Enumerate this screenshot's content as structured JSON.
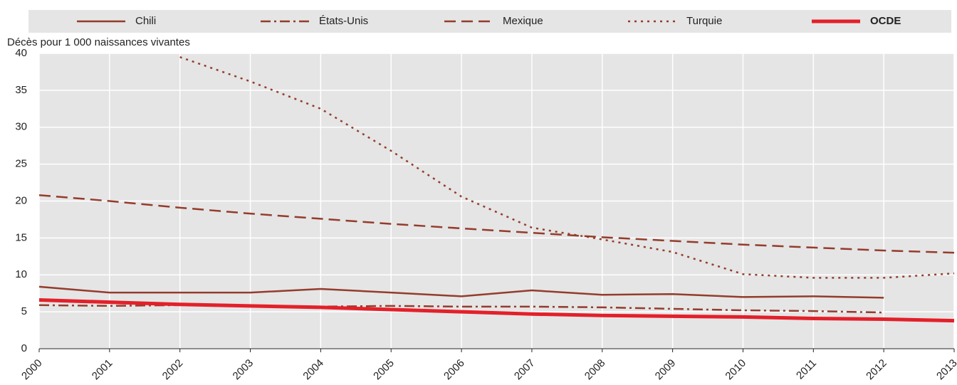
{
  "chart_data": {
    "type": "line",
    "y_axis_label": "Décès pour 1 000 naissances vivantes",
    "x": [
      2000,
      2001,
      2002,
      2003,
      2004,
      2005,
      2006,
      2007,
      2008,
      2009,
      2010,
      2011,
      2012,
      2013
    ],
    "xlim": [
      2000,
      2013
    ],
    "xticks": [
      2000,
      2001,
      2002,
      2003,
      2004,
      2005,
      2006,
      2007,
      2008,
      2009,
      2010,
      2011,
      2012,
      2013
    ],
    "ylim": [
      0,
      40
    ],
    "yticks": [
      0,
      5,
      10,
      15,
      20,
      25,
      30,
      35,
      40
    ],
    "grid": true,
    "legend": "top",
    "series": [
      {
        "name": "Chili",
        "color": "#943c2c",
        "dash": "solid",
        "width": 2.5,
        "values": [
          8.4,
          7.6,
          7.6,
          7.6,
          8.1,
          7.6,
          7.1,
          7.9,
          7.3,
          7.4,
          7.0,
          7.1,
          6.9,
          null
        ]
      },
      {
        "name": "États-Unis",
        "color": "#943c2c",
        "dash": "dashdot",
        "width": 2.5,
        "values": [
          5.9,
          5.8,
          5.9,
          5.8,
          5.7,
          5.8,
          5.7,
          5.7,
          5.6,
          5.4,
          5.2,
          5.1,
          4.9,
          null
        ]
      },
      {
        "name": "Mexique",
        "color": "#943c2c",
        "dash": "dashed",
        "width": 2.5,
        "values": [
          20.8,
          20.0,
          19.1,
          18.3,
          17.6,
          16.9,
          16.3,
          15.7,
          15.1,
          14.6,
          14.1,
          13.7,
          13.3,
          13.0
        ]
      },
      {
        "name": "Turquie",
        "color": "#943c2c",
        "dash": "dotted",
        "width": 2.5,
        "values": [
          null,
          null,
          39.5,
          36.2,
          32.5,
          26.8,
          20.6,
          16.4,
          14.8,
          13.1,
          10.1,
          9.6,
          9.6,
          10.2
        ]
      },
      {
        "name": "OCDE",
        "color": "#e3202a",
        "dash": "solid",
        "width": 5,
        "values": [
          6.6,
          6.3,
          6.0,
          5.8,
          5.6,
          5.3,
          5.0,
          4.7,
          4.5,
          4.4,
          4.3,
          4.1,
          4.0,
          3.8
        ]
      }
    ]
  }
}
